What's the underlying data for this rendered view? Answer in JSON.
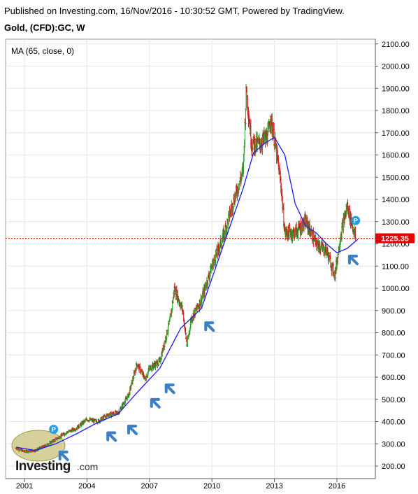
{
  "header": {
    "published": "Published on Investing.com, 16/Nov/2016 - 10:30:52 GMT, Powered by TradingView.",
    "symbol": "Gold, (CFD):GC, W"
  },
  "indicator_label": "MA (65, close, 0)",
  "watermark": "Investing.com",
  "colors": {
    "up": "#2ca02c",
    "down": "#cc2222",
    "ma": "#1a1aff",
    "price_line": "#cc0000",
    "price_tag": "#e60000",
    "arrow": "#3d7fc4",
    "marker": "#1e9ff2",
    "ellipse": "#c8c07a"
  },
  "chart_data": {
    "type": "line",
    "title": "Gold, (CFD):GC, W",
    "x_ticks": [
      "2001",
      "2004",
      "2007",
      "2010",
      "2013",
      "2016"
    ],
    "y_ticks": [
      "200.00",
      "300.00",
      "400.00",
      "500.00",
      "600.00",
      "700.00",
      "800.00",
      "900.00",
      "1000.00",
      "1100.00",
      "1200.00",
      "1300.00",
      "1400.00",
      "1500.00",
      "1600.00",
      "1700.00",
      "1800.00",
      "1900.00",
      "2000.00",
      "2100.00"
    ],
    "xlim": [
      2000.5,
      2017.4
    ],
    "ylim": [
      180,
      2110
    ],
    "last_price": "1225.35",
    "series": [
      {
        "name": "Price",
        "x": [
          2000.6,
          2001.0,
          2001.5,
          2002.0,
          2002.5,
          2003.0,
          2003.5,
          2004.0,
          2004.5,
          2005.0,
          2005.5,
          2006.0,
          2006.4,
          2006.8,
          2007.0,
          2007.5,
          2008.0,
          2008.2,
          2008.6,
          2008.8,
          2009.0,
          2009.5,
          2010.0,
          2010.5,
          2011.0,
          2011.5,
          2011.65,
          2011.9,
          2012.3,
          2012.7,
          2012.8,
          2013.0,
          2013.3,
          2013.5,
          2014.0,
          2014.5,
          2015.0,
          2015.5,
          2015.9,
          2016.2,
          2016.5,
          2016.9
        ],
        "values": [
          280,
          265,
          270,
          290,
          320,
          350,
          370,
          410,
          400,
          430,
          440,
          520,
          660,
          590,
          640,
          670,
          860,
          1000,
          900,
          740,
          860,
          950,
          1100,
          1220,
          1380,
          1530,
          1900,
          1650,
          1650,
          1690,
          1770,
          1670,
          1480,
          1250,
          1250,
          1300,
          1200,
          1170,
          1060,
          1250,
          1370,
          1225
        ]
      },
      {
        "name": "MA (65, close, 0)",
        "x": [
          2000.6,
          2001.5,
          2002.5,
          2003.5,
          2004.5,
          2005.5,
          2006.5,
          2007.5,
          2008.5,
          2009.5,
          2010.5,
          2011.5,
          2012.0,
          2012.5,
          2013.0,
          2013.5,
          2014.0,
          2014.5,
          2015.0,
          2015.5,
          2016.0,
          2016.5,
          2017.0
        ],
        "values": [
          285,
          270,
          300,
          345,
          395,
          435,
          540,
          640,
          820,
          910,
          1180,
          1450,
          1610,
          1650,
          1680,
          1600,
          1380,
          1280,
          1250,
          1200,
          1160,
          1180,
          1220
        ]
      }
    ],
    "grid": true
  }
}
